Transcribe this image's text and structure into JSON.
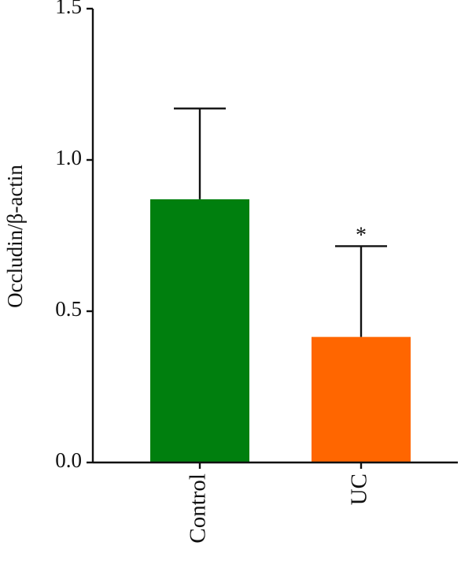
{
  "chart_data": {
    "type": "bar",
    "title": "",
    "xlabel": "",
    "ylabel": "Occludin/β-actin",
    "ylim": [
      0,
      1.5
    ],
    "yticks": [
      "0.0",
      "0.5",
      "1.0",
      "1.5"
    ],
    "categories": [
      "Control",
      "UC"
    ],
    "values": [
      0.87,
      0.415
    ],
    "error_upper": [
      1.17,
      0.715
    ],
    "bar_colors": [
      "#007F0E",
      "#FF6600"
    ],
    "significance": [
      "",
      "*"
    ],
    "grid": false,
    "legend": "none"
  }
}
